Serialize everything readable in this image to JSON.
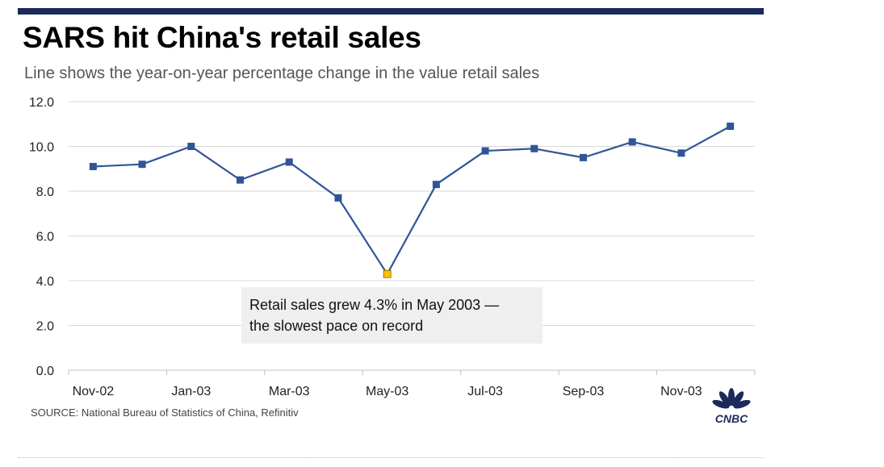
{
  "header": {
    "title": "SARS hit China's retail sales",
    "subtitle": "Line shows the year-on-year percentage change in the value retail sales"
  },
  "annotation": {
    "line1": "Retail sales grew 4.3% in May 2003 —",
    "line2": "the slowest pace on record"
  },
  "footer": {
    "source": "SOURCE: National Bureau of Statistics of China, Refinitiv",
    "logo_text": "CNBC"
  },
  "colors": {
    "line": "#2f5597",
    "highlight": "#ffc000",
    "top_bar": "#1c2a5a"
  },
  "chart_data": {
    "type": "line",
    "x": [
      "Nov-02",
      "Dec-02",
      "Jan-03",
      "Feb-03",
      "Mar-03",
      "Apr-03",
      "May-03",
      "Jun-03",
      "Jul-03",
      "Aug-03",
      "Sep-03",
      "Oct-03",
      "Nov-03",
      "Dec-03"
    ],
    "series": [
      {
        "values": [
          9.1,
          9.2,
          10.0,
          8.5,
          9.3,
          7.7,
          4.3,
          8.3,
          9.8,
          9.9,
          9.5,
          10.2,
          9.7,
          10.9
        ]
      }
    ],
    "x_tick_labels": [
      "Nov-02",
      "Jan-03",
      "Mar-03",
      "May-03",
      "Jul-03",
      "Sep-03",
      "Nov-03"
    ],
    "y_tick_labels": [
      "0.0",
      "2.0",
      "4.0",
      "6.0",
      "8.0",
      "10.0",
      "12.0"
    ],
    "ylim": [
      0,
      12
    ],
    "grid": "horizontal",
    "highlight_index": 6,
    "marker": "square"
  }
}
